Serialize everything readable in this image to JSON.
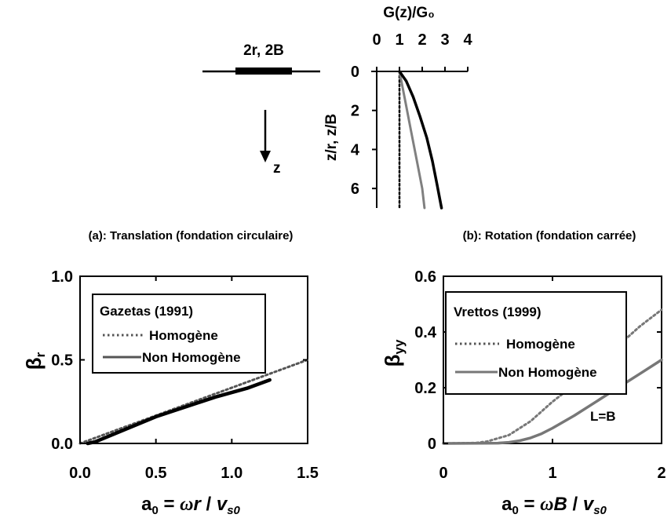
{
  "schematic": {
    "footing_label": "2r, 2B",
    "depth_label": "z"
  },
  "chart_data": [
    {
      "id": "profile",
      "type": "line",
      "title": "",
      "xlabel": "G(z)/G₀",
      "ylabel": "z/r, z/B",
      "xlim": [
        0,
        4
      ],
      "ylim": [
        0,
        7
      ],
      "x_ticks": [
        "0",
        "1",
        "2",
        "3",
        "4"
      ],
      "y_ticks": [
        "0",
        "2",
        "4",
        "6"
      ],
      "colors": {
        "homogeneous": "#000000",
        "linear": "#808080",
        "nonlinear": "#000000"
      },
      "series": [
        {
          "style": "dotted",
          "x": [
            1,
            1
          ],
          "y": [
            0,
            7
          ]
        },
        {
          "style": "solid-gray",
          "x": [
            1.0,
            1.25,
            1.5,
            1.75,
            2.0,
            2.1
          ],
          "y": [
            0,
            1.5,
            3.0,
            4.5,
            6.0,
            7.0
          ]
        },
        {
          "style": "solid-black",
          "x": [
            1.0,
            1.3,
            1.6,
            1.9,
            2.2,
            2.45,
            2.65,
            2.85
          ],
          "y": [
            0,
            0.5,
            1.3,
            2.3,
            3.4,
            4.6,
            5.8,
            7.0
          ]
        }
      ]
    },
    {
      "id": "panel-a",
      "type": "line",
      "title": "(a): Translation (fondation circulaire)",
      "xlabel": "a₀ = ωr / vₛ₀",
      "ylabel": "βr",
      "xlim": [
        0,
        1.5
      ],
      "ylim": [
        0,
        1.0
      ],
      "x_ticks": [
        "0.0",
        "0.5",
        "1.0",
        "1.5"
      ],
      "y_ticks": [
        "0.0",
        "0.5",
        "1.0"
      ],
      "legend": {
        "title": "Gazetas (1991)",
        "position": "top-left",
        "entries": [
          "Homogène",
          "Non Homogène"
        ]
      },
      "colors": {
        "homogene": "#555555",
        "non_homogene": "#000000"
      },
      "series": [
        {
          "name": "Homogène",
          "style": "dotted",
          "x": [
            0.0,
            0.3,
            0.6,
            0.9,
            1.2,
            1.5
          ],
          "y": [
            0.0,
            0.1,
            0.2,
            0.3,
            0.4,
            0.5
          ]
        },
        {
          "name": "Non Homogène",
          "style": "solid",
          "x": [
            0.05,
            0.1,
            0.3,
            0.5,
            0.7,
            0.9,
            1.1,
            1.25
          ],
          "y": [
            0.0,
            0.01,
            0.085,
            0.16,
            0.22,
            0.28,
            0.33,
            0.38
          ]
        }
      ]
    },
    {
      "id": "panel-b",
      "type": "line",
      "title": "(b): Rotation (fondation carrée)",
      "xlabel": "a₀ = ωB / vₛ₀",
      "ylabel": "βyy",
      "xlim": [
        0,
        2
      ],
      "ylim": [
        0,
        0.6
      ],
      "x_ticks": [
        "0",
        "1",
        "2"
      ],
      "y_ticks": [
        "0",
        "0.2",
        "0.4",
        "0.6"
      ],
      "legend": {
        "title": "Vrettos (1999)",
        "position": "top-left",
        "entries": [
          "Homogène",
          "Non Homogène"
        ]
      },
      "annotation": "L=B",
      "colors": {
        "homogene": "#777777",
        "non_homogene": "#777777"
      },
      "series": [
        {
          "name": "Homogène",
          "style": "dotted",
          "x": [
            0,
            0.3,
            0.4,
            0.6,
            0.8,
            1.0,
            1.2,
            1.4,
            1.6,
            1.8,
            2.0
          ],
          "y": [
            0,
            0.002,
            0.007,
            0.03,
            0.08,
            0.15,
            0.21,
            0.28,
            0.35,
            0.42,
            0.48
          ]
        },
        {
          "name": "Non Homogène",
          "style": "solid",
          "x": [
            0,
            0.5,
            0.6,
            0.7,
            0.8,
            0.9,
            1.0,
            1.2,
            1.4,
            1.6,
            1.8,
            2.0
          ],
          "y": [
            0,
            0.001,
            0.004,
            0.01,
            0.02,
            0.035,
            0.055,
            0.1,
            0.15,
            0.2,
            0.25,
            0.3
          ]
        }
      ]
    }
  ]
}
